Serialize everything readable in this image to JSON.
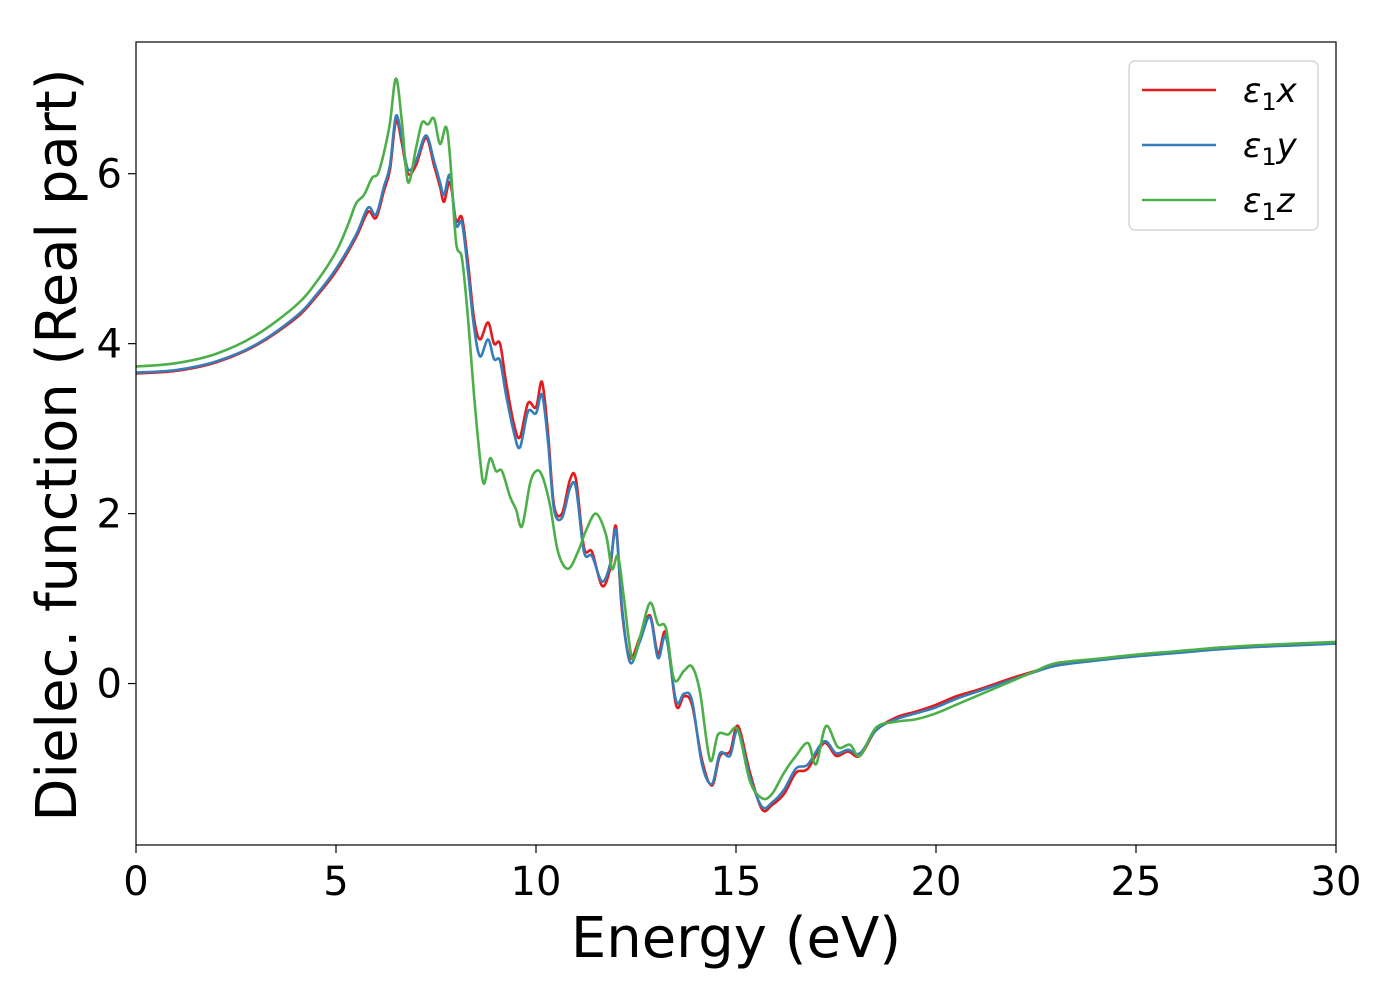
{
  "chart_data": {
    "type": "line",
    "title": "",
    "xlabel": "Energy (eV)",
    "ylabel": "Dielec. function (Real part)",
    "xlim": [
      0,
      30
    ],
    "ylim": [
      -1.9,
      7.55
    ],
    "x_ticks": [
      0,
      5,
      10,
      15,
      20,
      25,
      30
    ],
    "y_ticks": [
      0,
      2,
      4,
      6
    ],
    "legend_position": "top-right",
    "grid": false,
    "series": [
      {
        "name": "ε1x",
        "legend_symbol": "ε",
        "legend_sub": "1",
        "legend_var": "x",
        "color": "#e41a1c",
        "points": [
          [
            0,
            3.65
          ],
          [
            1,
            3.68
          ],
          [
            2,
            3.78
          ],
          [
            3,
            3.98
          ],
          [
            4,
            4.3
          ],
          [
            4.5,
            4.55
          ],
          [
            5,
            4.85
          ],
          [
            5.5,
            5.25
          ],
          [
            5.8,
            5.55
          ],
          [
            6.0,
            5.48
          ],
          [
            6.2,
            5.8
          ],
          [
            6.35,
            6.05
          ],
          [
            6.5,
            6.62
          ],
          [
            6.65,
            6.35
          ],
          [
            6.8,
            6.0
          ],
          [
            7.0,
            6.1
          ],
          [
            7.25,
            6.42
          ],
          [
            7.45,
            6.1
          ],
          [
            7.6,
            5.85
          ],
          [
            7.7,
            5.67
          ],
          [
            7.85,
            5.9
          ],
          [
            8.0,
            5.45
          ],
          [
            8.15,
            5.48
          ],
          [
            8.3,
            4.95
          ],
          [
            8.45,
            4.3
          ],
          [
            8.6,
            4.05
          ],
          [
            8.8,
            4.25
          ],
          [
            8.95,
            4.0
          ],
          [
            9.1,
            4.0
          ],
          [
            9.25,
            3.55
          ],
          [
            9.45,
            3.05
          ],
          [
            9.6,
            2.9
          ],
          [
            9.8,
            3.3
          ],
          [
            10.0,
            3.25
          ],
          [
            10.15,
            3.55
          ],
          [
            10.3,
            2.95
          ],
          [
            10.45,
            2.1
          ],
          [
            10.65,
            2.0
          ],
          [
            10.85,
            2.4
          ],
          [
            11.0,
            2.4
          ],
          [
            11.2,
            1.6
          ],
          [
            11.4,
            1.55
          ],
          [
            11.65,
            1.15
          ],
          [
            11.85,
            1.35
          ],
          [
            12.0,
            1.85
          ],
          [
            12.15,
            0.85
          ],
          [
            12.35,
            0.3
          ],
          [
            12.6,
            0.55
          ],
          [
            12.85,
            0.8
          ],
          [
            13.05,
            0.35
          ],
          [
            13.25,
            0.6
          ],
          [
            13.5,
            -0.25
          ],
          [
            13.7,
            -0.15
          ],
          [
            13.9,
            -0.25
          ],
          [
            14.15,
            -0.9
          ],
          [
            14.4,
            -1.2
          ],
          [
            14.6,
            -0.85
          ],
          [
            14.85,
            -0.8
          ],
          [
            15.05,
            -0.5
          ],
          [
            15.35,
            -1.05
          ],
          [
            15.65,
            -1.48
          ],
          [
            15.9,
            -1.43
          ],
          [
            16.2,
            -1.3
          ],
          [
            16.5,
            -1.05
          ],
          [
            16.8,
            -1.0
          ],
          [
            17.2,
            -0.7
          ],
          [
            17.5,
            -0.85
          ],
          [
            17.8,
            -0.8
          ],
          [
            18.1,
            -0.85
          ],
          [
            18.5,
            -0.55
          ],
          [
            19.0,
            -0.4
          ],
          [
            19.5,
            -0.33
          ],
          [
            20,
            -0.25
          ],
          [
            20.5,
            -0.15
          ],
          [
            21,
            -0.08
          ],
          [
            21.5,
            0.0
          ],
          [
            22,
            0.08
          ],
          [
            22.5,
            0.15
          ],
          [
            23,
            0.22
          ],
          [
            24,
            0.28
          ],
          [
            25,
            0.33
          ],
          [
            26,
            0.37
          ],
          [
            27,
            0.42
          ],
          [
            28,
            0.44
          ],
          [
            29,
            0.46
          ],
          [
            30,
            0.48
          ]
        ]
      },
      {
        "name": "ε1y",
        "legend_symbol": "ε",
        "legend_sub": "1",
        "legend_var": "y",
        "color": "#377eb8",
        "points": [
          [
            0,
            3.66
          ],
          [
            1,
            3.69
          ],
          [
            2,
            3.79
          ],
          [
            3,
            3.99
          ],
          [
            4,
            4.32
          ],
          [
            4.5,
            4.57
          ],
          [
            5,
            4.88
          ],
          [
            5.5,
            5.28
          ],
          [
            5.8,
            5.6
          ],
          [
            6.0,
            5.52
          ],
          [
            6.2,
            5.85
          ],
          [
            6.35,
            6.1
          ],
          [
            6.5,
            6.68
          ],
          [
            6.65,
            6.4
          ],
          [
            6.8,
            6.05
          ],
          [
            7.0,
            6.15
          ],
          [
            7.25,
            6.45
          ],
          [
            7.45,
            6.15
          ],
          [
            7.6,
            5.9
          ],
          [
            7.7,
            5.75
          ],
          [
            7.85,
            5.98
          ],
          [
            8.0,
            5.4
          ],
          [
            8.15,
            5.42
          ],
          [
            8.3,
            4.85
          ],
          [
            8.45,
            4.2
          ],
          [
            8.6,
            3.85
          ],
          [
            8.8,
            4.05
          ],
          [
            8.95,
            3.82
          ],
          [
            9.1,
            3.8
          ],
          [
            9.25,
            3.4
          ],
          [
            9.45,
            2.95
          ],
          [
            9.6,
            2.78
          ],
          [
            9.8,
            3.2
          ],
          [
            10.0,
            3.18
          ],
          [
            10.15,
            3.4
          ],
          [
            10.3,
            2.85
          ],
          [
            10.45,
            2.05
          ],
          [
            10.65,
            1.95
          ],
          [
            10.85,
            2.3
          ],
          [
            11.0,
            2.3
          ],
          [
            11.2,
            1.55
          ],
          [
            11.4,
            1.5
          ],
          [
            11.65,
            1.2
          ],
          [
            11.85,
            1.4
          ],
          [
            12.0,
            1.8
          ],
          [
            12.15,
            0.9
          ],
          [
            12.35,
            0.25
          ],
          [
            12.6,
            0.5
          ],
          [
            12.85,
            0.78
          ],
          [
            13.05,
            0.3
          ],
          [
            13.25,
            0.55
          ],
          [
            13.5,
            -0.2
          ],
          [
            13.7,
            -0.12
          ],
          [
            13.9,
            -0.2
          ],
          [
            14.15,
            -0.95
          ],
          [
            14.4,
            -1.18
          ],
          [
            14.6,
            -0.82
          ],
          [
            14.85,
            -0.85
          ],
          [
            15.05,
            -0.55
          ],
          [
            15.35,
            -1.1
          ],
          [
            15.65,
            -1.45
          ],
          [
            15.9,
            -1.4
          ],
          [
            16.2,
            -1.25
          ],
          [
            16.5,
            -1.0
          ],
          [
            16.8,
            -0.95
          ],
          [
            17.2,
            -0.68
          ],
          [
            17.5,
            -0.82
          ],
          [
            17.8,
            -0.78
          ],
          [
            18.1,
            -0.82
          ],
          [
            18.5,
            -0.55
          ],
          [
            19.0,
            -0.42
          ],
          [
            19.5,
            -0.35
          ],
          [
            20,
            -0.28
          ],
          [
            20.5,
            -0.18
          ],
          [
            21,
            -0.1
          ],
          [
            21.5,
            -0.02
          ],
          [
            22,
            0.06
          ],
          [
            22.5,
            0.14
          ],
          [
            23,
            0.21
          ],
          [
            24,
            0.27
          ],
          [
            25,
            0.32
          ],
          [
            26,
            0.36
          ],
          [
            27,
            0.4
          ],
          [
            28,
            0.43
          ],
          [
            29,
            0.45
          ],
          [
            30,
            0.47
          ]
        ]
      },
      {
        "name": "ε1z",
        "legend_symbol": "ε",
        "legend_sub": "1",
        "legend_var": "z",
        "color": "#4daf4a",
        "points": [
          [
            0,
            3.73
          ],
          [
            1,
            3.77
          ],
          [
            2,
            3.88
          ],
          [
            3,
            4.1
          ],
          [
            4,
            4.45
          ],
          [
            4.5,
            4.72
          ],
          [
            5,
            5.08
          ],
          [
            5.3,
            5.4
          ],
          [
            5.5,
            5.65
          ],
          [
            5.7,
            5.75
          ],
          [
            5.9,
            5.95
          ],
          [
            6.05,
            6.0
          ],
          [
            6.2,
            6.25
          ],
          [
            6.35,
            6.6
          ],
          [
            6.5,
            7.12
          ],
          [
            6.65,
            6.6
          ],
          [
            6.8,
            5.9
          ],
          [
            7.0,
            6.3
          ],
          [
            7.15,
            6.6
          ],
          [
            7.3,
            6.58
          ],
          [
            7.45,
            6.65
          ],
          [
            7.6,
            6.35
          ],
          [
            7.75,
            6.55
          ],
          [
            7.85,
            6.2
          ],
          [
            8.0,
            5.2
          ],
          [
            8.15,
            5.0
          ],
          [
            8.3,
            4.3
          ],
          [
            8.45,
            3.4
          ],
          [
            8.6,
            2.65
          ],
          [
            8.7,
            2.35
          ],
          [
            8.85,
            2.65
          ],
          [
            9.0,
            2.5
          ],
          [
            9.15,
            2.5
          ],
          [
            9.35,
            2.2
          ],
          [
            9.5,
            2.05
          ],
          [
            9.65,
            1.85
          ],
          [
            9.85,
            2.35
          ],
          [
            10.0,
            2.5
          ],
          [
            10.15,
            2.45
          ],
          [
            10.35,
            2.1
          ],
          [
            10.55,
            1.55
          ],
          [
            10.8,
            1.35
          ],
          [
            11.05,
            1.55
          ],
          [
            11.25,
            1.8
          ],
          [
            11.5,
            2.0
          ],
          [
            11.75,
            1.75
          ],
          [
            11.9,
            1.35
          ],
          [
            12.05,
            1.5
          ],
          [
            12.2,
            1.0
          ],
          [
            12.4,
            0.3
          ],
          [
            12.6,
            0.55
          ],
          [
            12.85,
            0.95
          ],
          [
            13.05,
            0.7
          ],
          [
            13.25,
            0.65
          ],
          [
            13.45,
            0.05
          ],
          [
            13.7,
            0.15
          ],
          [
            13.9,
            0.2
          ],
          [
            14.1,
            -0.1
          ],
          [
            14.35,
            -0.9
          ],
          [
            14.55,
            -0.6
          ],
          [
            14.8,
            -0.6
          ],
          [
            15.05,
            -0.55
          ],
          [
            15.35,
            -1.15
          ],
          [
            15.65,
            -1.35
          ],
          [
            15.9,
            -1.3
          ],
          [
            16.2,
            -1.05
          ],
          [
            16.5,
            -0.85
          ],
          [
            16.8,
            -0.7
          ],
          [
            17.0,
            -0.95
          ],
          [
            17.25,
            -0.5
          ],
          [
            17.55,
            -0.75
          ],
          [
            17.85,
            -0.72
          ],
          [
            18.1,
            -0.85
          ],
          [
            18.5,
            -0.52
          ],
          [
            19.0,
            -0.45
          ],
          [
            19.5,
            -0.42
          ],
          [
            20,
            -0.35
          ],
          [
            20.5,
            -0.25
          ],
          [
            21,
            -0.15
          ],
          [
            21.5,
            -0.05
          ],
          [
            22,
            0.05
          ],
          [
            22.5,
            0.15
          ],
          [
            23,
            0.24
          ],
          [
            24,
            0.29
          ],
          [
            25,
            0.34
          ],
          [
            26,
            0.38
          ],
          [
            27,
            0.42
          ],
          [
            28,
            0.45
          ],
          [
            29,
            0.47
          ],
          [
            30,
            0.49
          ]
        ]
      }
    ]
  }
}
